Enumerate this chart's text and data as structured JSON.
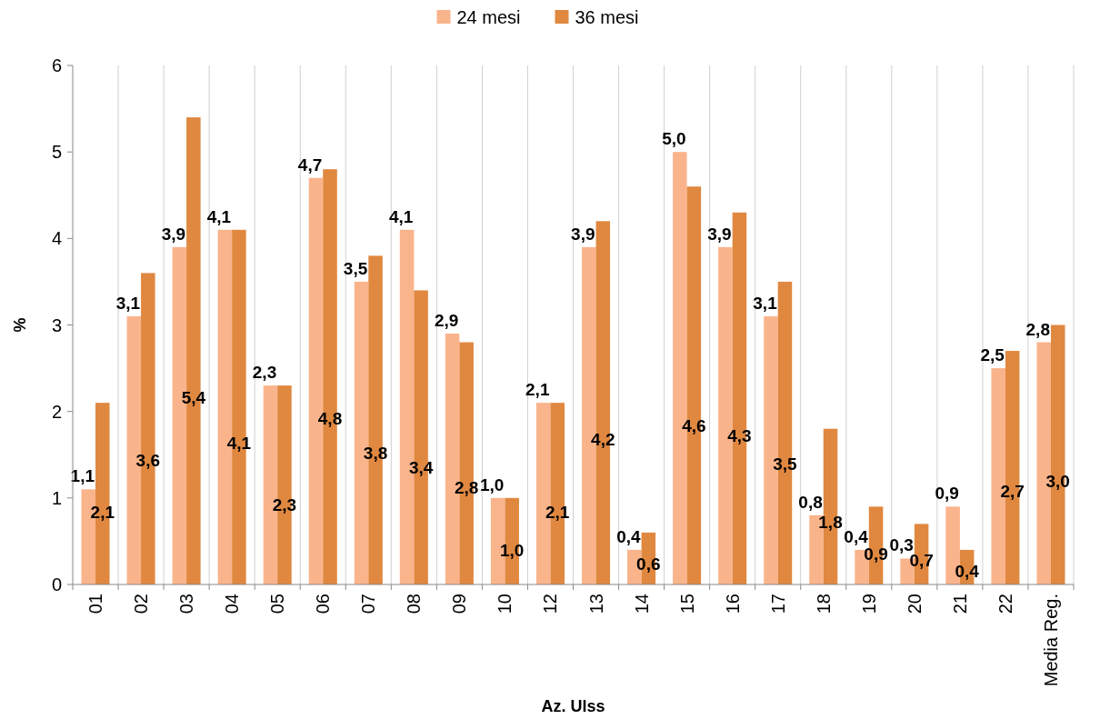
{
  "chart_data": {
    "type": "bar",
    "xlabel": "Az. Ulss",
    "ylabel": "%",
    "categories": [
      "01",
      "02",
      "03",
      "04",
      "05",
      "06",
      "07",
      "08",
      "09",
      "10",
      "12",
      "13",
      "14",
      "15",
      "16",
      "17",
      "18",
      "19",
      "20",
      "21",
      "22",
      "Media Reg."
    ],
    "series": [
      {
        "name": "24 mesi",
        "color": "#fab48b",
        "values": [
          1.1,
          3.1,
          3.9,
          4.1,
          2.3,
          4.7,
          3.5,
          4.1,
          2.9,
          1.0,
          2.1,
          3.9,
          0.4,
          5.0,
          3.9,
          3.1,
          0.8,
          0.4,
          0.3,
          0.9,
          2.5,
          2.8
        ],
        "value_labels": [
          "1,1",
          "3,1",
          "3,9",
          "4,1",
          "2,3",
          "4,7",
          "3,5",
          "4,1",
          "2,9",
          "1,0",
          "2,1",
          "3,9",
          "0,4",
          "5,0",
          "3,9",
          "3,1",
          "0,8",
          "0,4",
          "0,3",
          "0,9",
          "2,5",
          "2,8"
        ]
      },
      {
        "name": "36 mesi",
        "color": "#e08840",
        "values": [
          2.1,
          3.6,
          5.4,
          4.1,
          2.3,
          4.8,
          3.8,
          3.4,
          2.8,
          1.0,
          2.1,
          4.2,
          0.6,
          4.6,
          4.3,
          3.5,
          1.8,
          0.9,
          0.7,
          0.4,
          2.7,
          3.0
        ],
        "value_labels": [
          "2,1",
          "3,6",
          "5,4",
          "4,1",
          "2,3",
          "4,8",
          "3,8",
          "3,4",
          "2,8",
          "1,0",
          "2,1",
          "4,2",
          "0,6",
          "4,6",
          "4,3",
          "3,5",
          "1,8",
          "0,9",
          "0,7",
          "0,4",
          "2,7",
          "3,0"
        ]
      }
    ],
    "ylim": [
      0,
      6
    ],
    "yticks": [
      0,
      1,
      2,
      3,
      4,
      5,
      6
    ],
    "grid": "x",
    "legend": "top"
  }
}
